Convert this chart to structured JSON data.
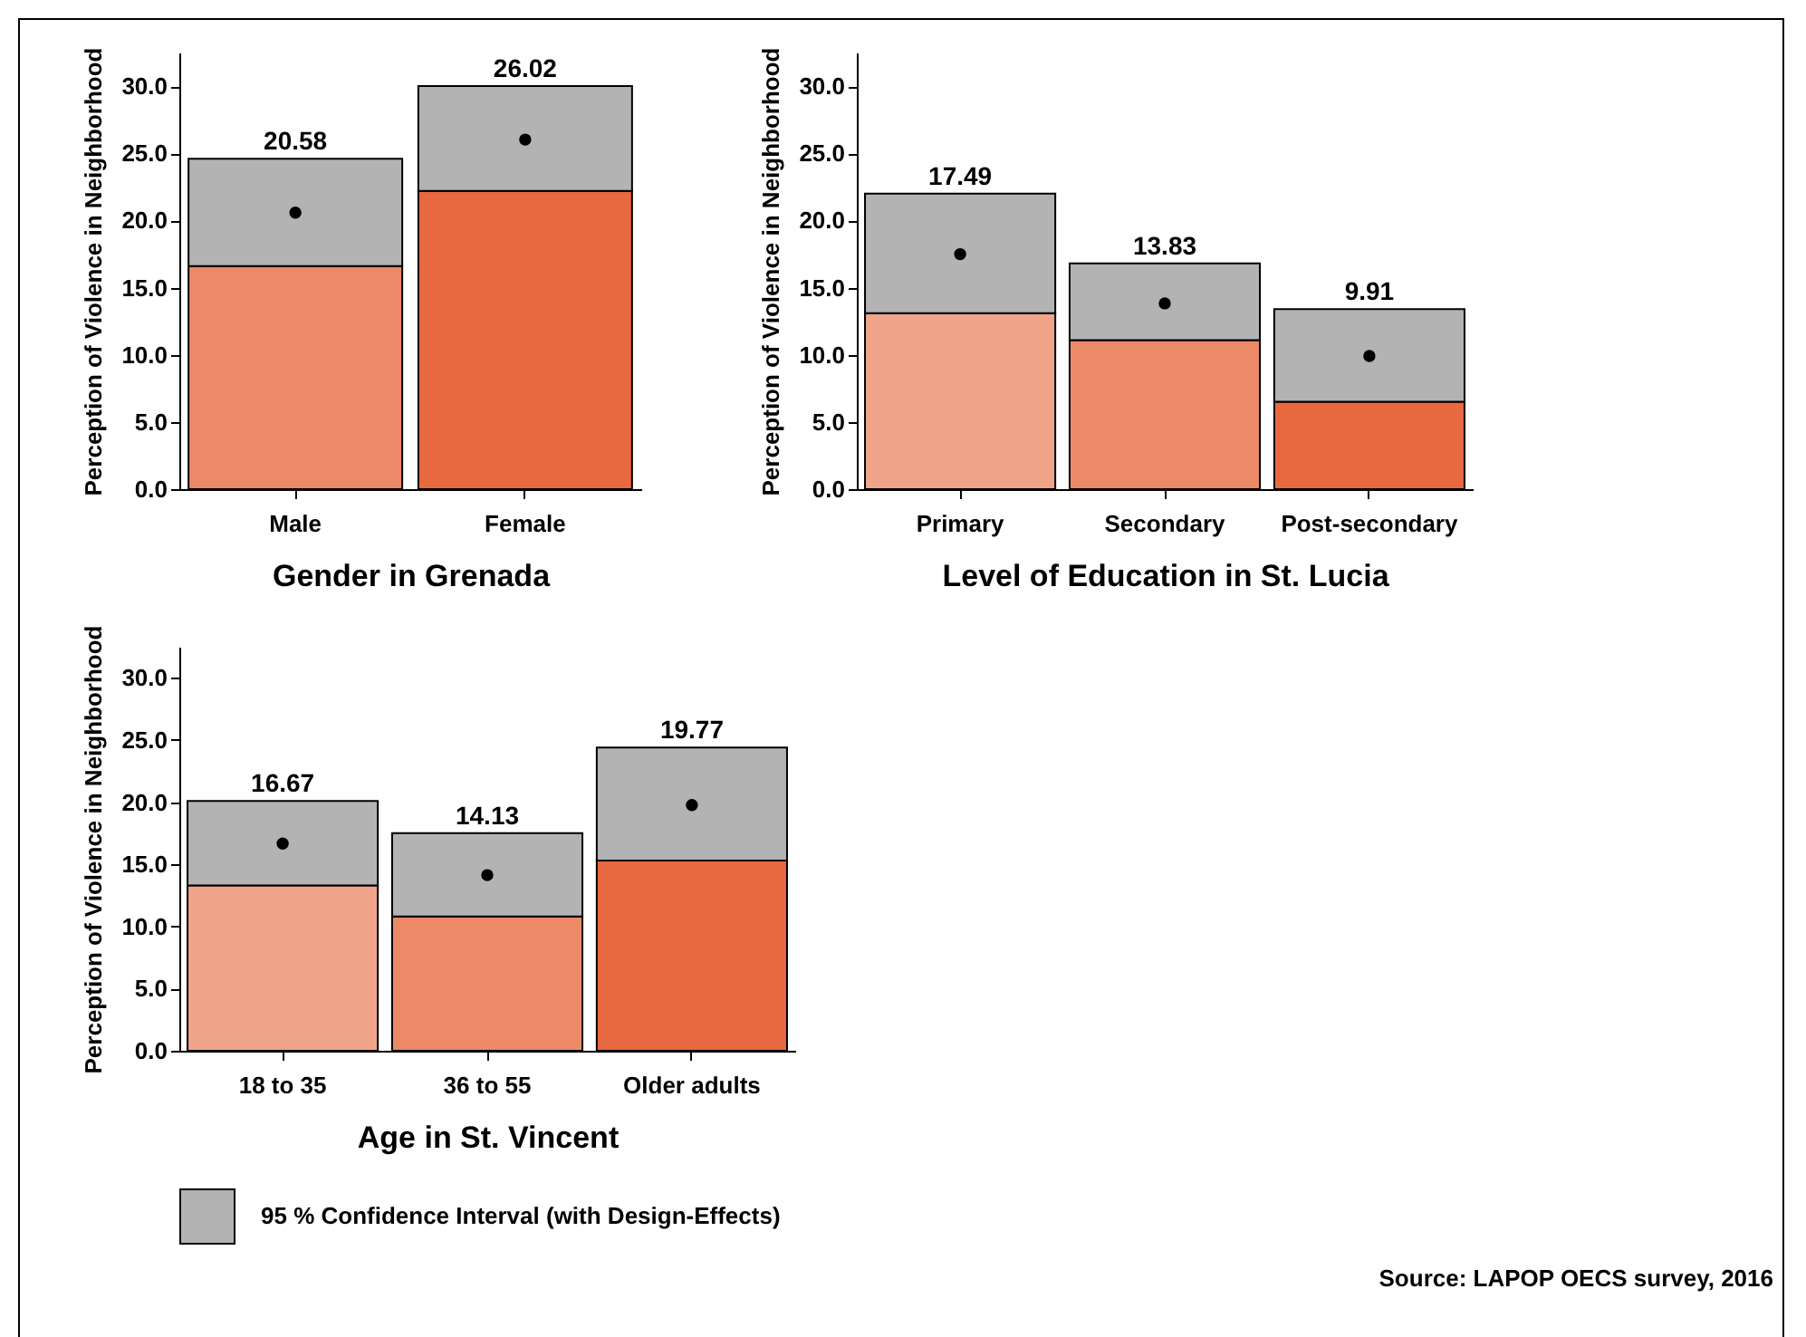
{
  "chart_data": [
    {
      "type": "bar",
      "stacked": true,
      "categories": [
        "Male",
        "Female"
      ],
      "xlabel": "Gender in Grenada",
      "ylabel": "Perception of Violence in Neighborhood",
      "ylim": [
        0,
        32.5
      ],
      "yticks": [
        {
          "value": 0,
          "label": "0.0"
        },
        {
          "value": 5,
          "label": "5.0"
        },
        {
          "value": 10,
          "label": "10.0"
        },
        {
          "value": 15,
          "label": "15.0"
        },
        {
          "value": 20,
          "label": "20.0"
        },
        {
          "value": 25,
          "label": "25.0"
        },
        {
          "value": 30,
          "label": "30.0"
        }
      ],
      "grid": false,
      "legend": false,
      "series": [
        {
          "colors": [
            "#ec8967",
            "#e8693f"
          ],
          "values": [
            16.6,
            22.2
          ]
        },
        {
          "color": "#b3b3b3",
          "values": [
            8.0,
            7.8
          ]
        },
        {
          "type": "scatter",
          "marker": "circle",
          "color": "#000000",
          "x": [
            "Male",
            "Female"
          ],
          "values": [
            20.58,
            26.02
          ],
          "value_labels": [
            "20.58",
            "26.02"
          ]
        }
      ]
    },
    {
      "type": "bar",
      "stacked": true,
      "categories": [
        "Primary",
        "Secondary",
        "Post-secondary"
      ],
      "xlabel": "Level of Education in St. Lucia",
      "ylabel": "Perception of Violence in Neighborhood",
      "ylim": [
        0,
        32.5
      ],
      "yticks": [
        {
          "value": 0,
          "label": "0.0"
        },
        {
          "value": 5,
          "label": "5.0"
        },
        {
          "value": 10,
          "label": "10.0"
        },
        {
          "value": 15,
          "label": "15.0"
        },
        {
          "value": 20,
          "label": "20.0"
        },
        {
          "value": 25,
          "label": "25.0"
        },
        {
          "value": 30,
          "label": "30.0"
        }
      ],
      "grid": false,
      "legend": false,
      "series": [
        {
          "colors": [
            "#f0a58a",
            "#ec8967",
            "#e8693f"
          ],
          "values": [
            13.1,
            11.1,
            6.5
          ]
        },
        {
          "color": "#b3b3b3",
          "values": [
            8.9,
            5.7,
            6.9
          ]
        },
        {
          "type": "scatter",
          "marker": "circle",
          "color": "#000000",
          "x": [
            "Primary",
            "Secondary",
            "Post-secondary"
          ],
          "values": [
            17.49,
            13.83,
            9.91
          ],
          "value_labels": [
            "17.49",
            "13.83",
            "9.91"
          ]
        }
      ]
    },
    {
      "type": "bar",
      "stacked": true,
      "categories": [
        "18 to 35",
        "36 to 55",
        "Older adults"
      ],
      "xlabel": "Age in St. Vincent",
      "ylabel": "Perception of Violence in Neighborhood",
      "ylim": [
        0,
        32.5
      ],
      "yticks": [
        {
          "value": 0,
          "label": "0.0"
        },
        {
          "value": 5,
          "label": "5.0"
        },
        {
          "value": 10,
          "label": "10.0"
        },
        {
          "value": 15,
          "label": "15.0"
        },
        {
          "value": 20,
          "label": "20.0"
        },
        {
          "value": 25,
          "label": "25.0"
        },
        {
          "value": 30,
          "label": "30.0"
        }
      ],
      "grid": false,
      "legend": "bottom",
      "annotations": [
        "Source: LAPOP OECS survey, 2016"
      ],
      "series": [
        {
          "colors": [
            "#f0a58a",
            "#ec8967",
            "#e8693f"
          ],
          "values": [
            13.3,
            10.8,
            15.3
          ]
        },
        {
          "name": "95 % Confidence Interval (with Design-Effects)",
          "color": "#b3b3b3",
          "values": [
            6.8,
            6.7,
            9.1
          ]
        },
        {
          "type": "scatter",
          "marker": "circle",
          "color": "#000000",
          "x": [
            "18 to 35",
            "36 to 55",
            "Older adults"
          ],
          "values": [
            16.67,
            14.13,
            19.77
          ],
          "value_labels": [
            "16.67",
            "14.13",
            "19.77"
          ]
        }
      ]
    }
  ]
}
